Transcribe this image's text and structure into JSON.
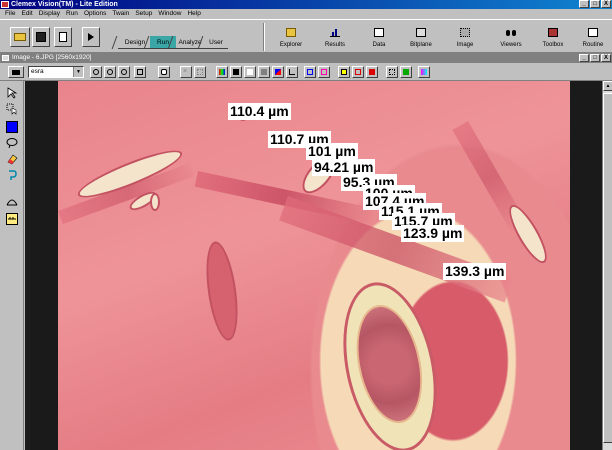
{
  "window": {
    "title": "Clemex Vision(TM) - Lite Edition",
    "btn_min": "_",
    "btn_max": "□",
    "btn_close": "X"
  },
  "menu": [
    "File",
    "Edit",
    "Display",
    "Run",
    "Options",
    "Twain",
    "Setup",
    "Window",
    "Help"
  ],
  "tabs": [
    "Design",
    "Run",
    "Analyze",
    "User"
  ],
  "active_tab": "Run",
  "modules": [
    "Explorer",
    "Results",
    "Data",
    "Bitplane",
    "Image",
    "Viewers",
    "Toolbox",
    "Routine"
  ],
  "image_window": {
    "title": "Image - 6.JPG [2560x1920]"
  },
  "toolbar2": {
    "combo_value": "esra",
    "combo_arrow": "▼"
  },
  "measurements": [
    "110.4 µm",
    "110.7 µm",
    "101 µm",
    "94.21 µm",
    "95.3 µm",
    "100 µm",
    "107.4 µm",
    "115.1 µm",
    "115.7 µm",
    "123.9 µm",
    "139.3 µm"
  ],
  "scroll_up": "▲",
  "colors": {
    "title_start": "#000080",
    "title_end": "#1084d0",
    "active_tab": "#3aa6a6",
    "tissue": "#e9848c"
  }
}
